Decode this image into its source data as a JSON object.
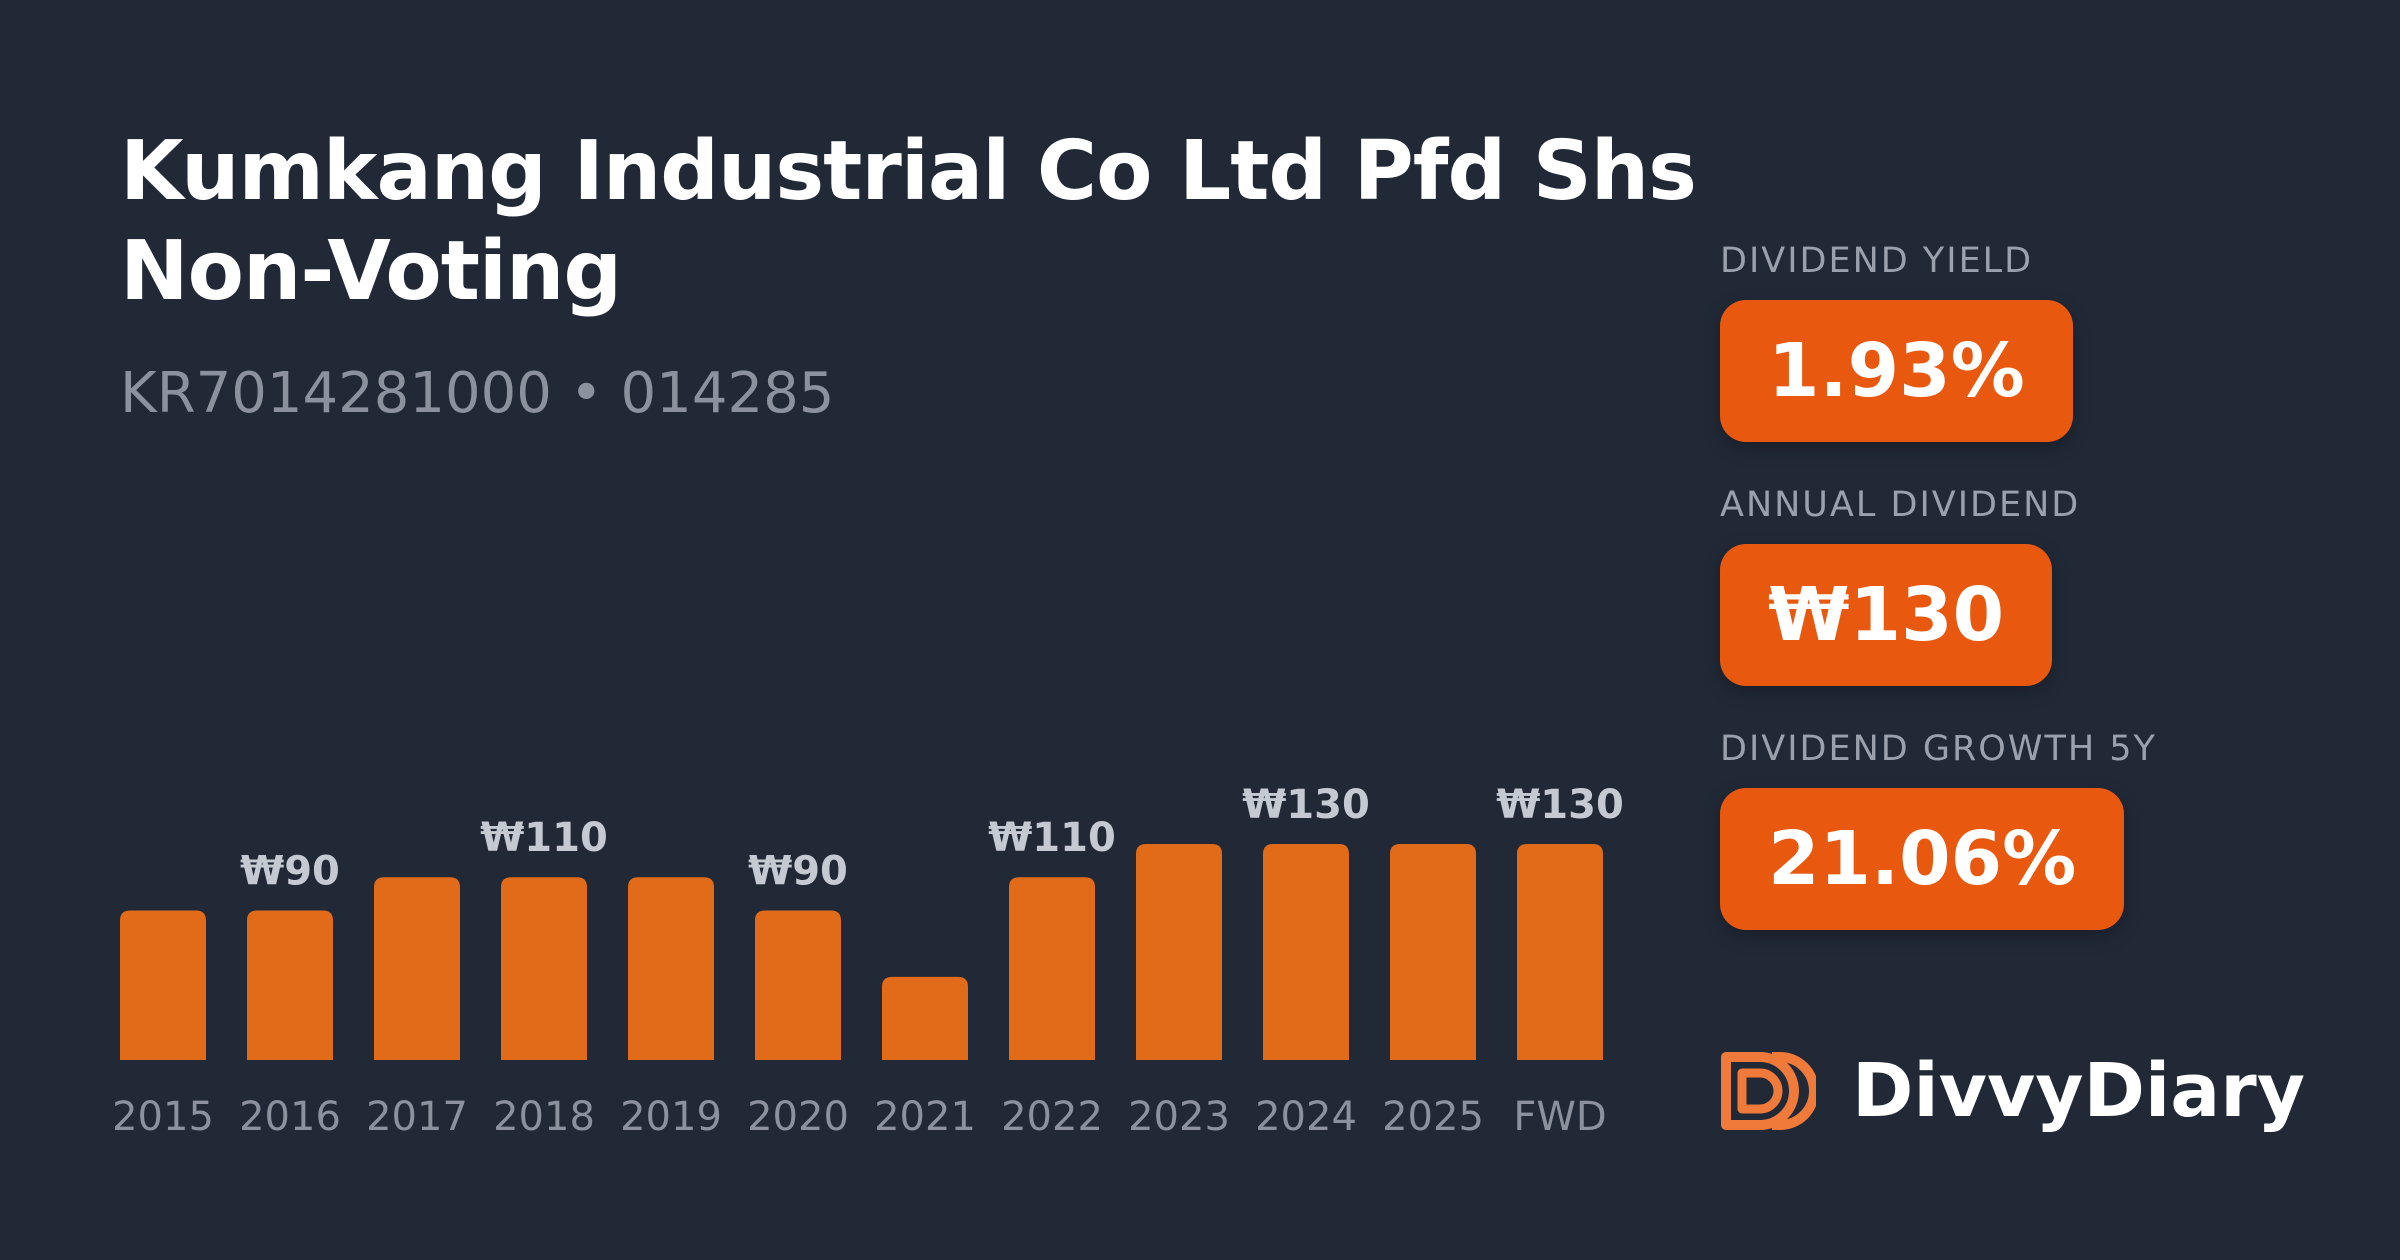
{
  "header": {
    "title": "Kumkang Industrial Co Ltd Pfd Shs Non-Voting",
    "subtitle": "KR7014281000 • 014285"
  },
  "stats": [
    {
      "label": "DIVIDEND YIELD",
      "value": "1.93%"
    },
    {
      "label": "ANNUAL DIVIDEND",
      "value": "₩130"
    },
    {
      "label": "DIVIDEND GROWTH 5Y",
      "value": "21.06%"
    }
  ],
  "brand": {
    "name": "DivvyDiary",
    "logo_icon": "divvydiary-logo-icon"
  },
  "colors": {
    "background": "#212937",
    "bar": "#e26b19",
    "badge": "#e8580f",
    "muted_text": "#8b929e",
    "value_label": "#c5cad2"
  },
  "chart_data": {
    "type": "bar",
    "categories": [
      "2015",
      "2016",
      "2017",
      "2018",
      "2019",
      "2020",
      "2021",
      "2022",
      "2023",
      "2024",
      "2025",
      "FWD"
    ],
    "values": [
      90,
      90,
      110,
      110,
      110,
      90,
      50,
      110,
      130,
      130,
      130,
      130
    ],
    "data_labels": [
      "",
      "₩90",
      "",
      "₩110",
      "",
      "₩90",
      "",
      "₩110",
      "",
      "₩130",
      "",
      "₩130"
    ],
    "title": "",
    "xlabel": "",
    "ylabel": "",
    "ylim": [
      0,
      130
    ],
    "grid": false,
    "legend": "none"
  }
}
